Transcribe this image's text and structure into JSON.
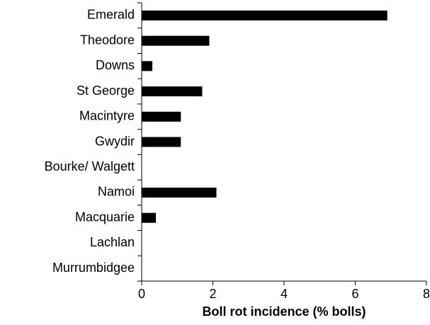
{
  "chart_data": {
    "type": "bar",
    "orientation": "horizontal",
    "categories": [
      "Emerald",
      "Theodore",
      "Downs",
      "St George",
      "Macintyre",
      "Gwydir",
      "Bourke/ Walgett",
      "Namoi",
      "Macquarie",
      "Lachlan",
      "Murrumbidgee"
    ],
    "values": [
      6.9,
      1.9,
      0.3,
      1.7,
      1.1,
      1.1,
      0,
      2.1,
      0.4,
      0,
      0
    ],
    "color": "#000000",
    "x_label": "Boll rot incidence (% bolls)",
    "xlim": [
      0,
      8
    ],
    "xticks": [
      0,
      2,
      4,
      6,
      8
    ],
    "grid": false
  }
}
